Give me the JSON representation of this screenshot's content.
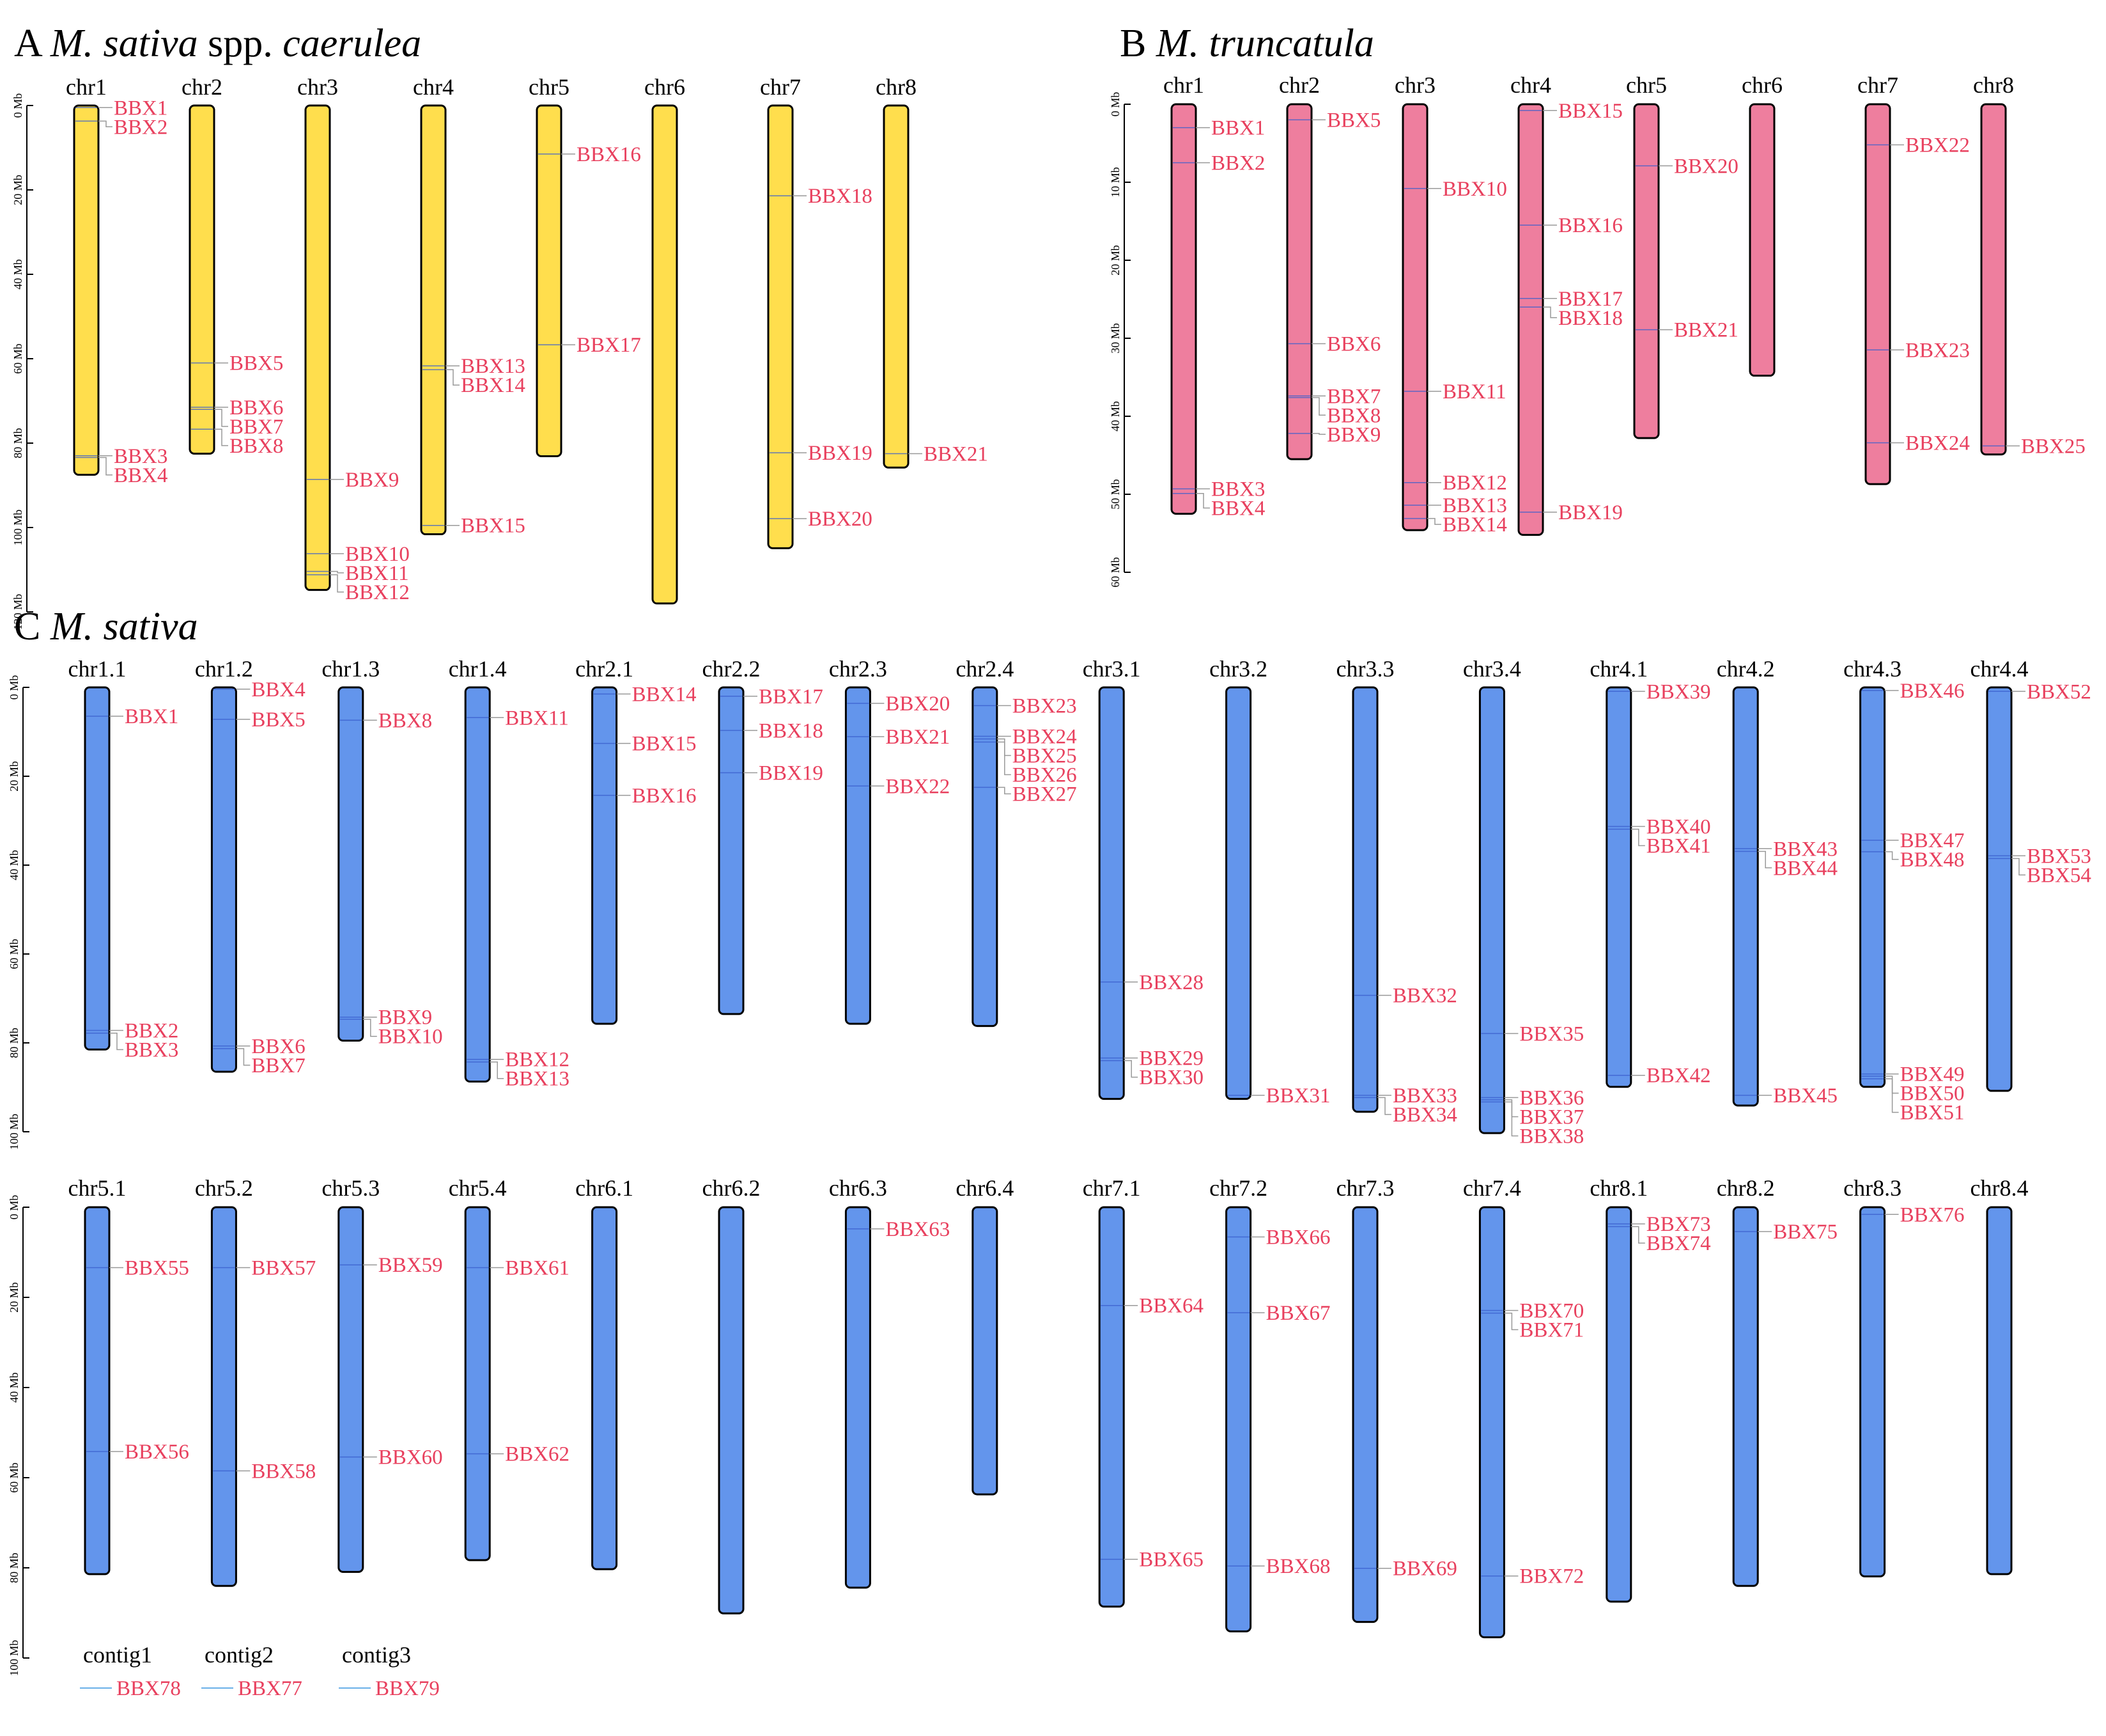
{
  "colors": {
    "A": "#FFDE4D",
    "B": "#EE7E9E",
    "C": "#6395EC",
    "gene_label": "#E8405E",
    "outline": "#000000"
  },
  "panels": [
    {
      "id": "A",
      "letter": "A",
      "species": "M. sativa",
      "species_suffix": " spp. ",
      "species_tail": "caerulea",
      "color_key": "A",
      "axis": {
        "ticks": [
          0,
          20,
          40,
          60,
          80,
          100,
          120
        ],
        "unit": "Mb"
      },
      "chromosomes": [
        {
          "name": "chr1",
          "length": 87.5,
          "genes": [
            {
              "name": "BBX1",
              "pos": 0.5
            },
            {
              "name": "BBX2",
              "pos": 3.7
            },
            {
              "name": "BBX3",
              "pos": 83.0
            },
            {
              "name": "BBX4",
              "pos": 83.4
            }
          ]
        },
        {
          "name": "chr2",
          "length": 82.5,
          "genes": [
            {
              "name": "BBX5",
              "pos": 61.0
            },
            {
              "name": "BBX6",
              "pos": 71.5
            },
            {
              "name": "BBX7",
              "pos": 72.0
            },
            {
              "name": "BBX8",
              "pos": 76.7
            }
          ]
        },
        {
          "name": "chr3",
          "length": 114.8,
          "genes": [
            {
              "name": "BBX9",
              "pos": 88.6
            },
            {
              "name": "BBX10",
              "pos": 106.2
            },
            {
              "name": "BBX11",
              "pos": 110.4
            },
            {
              "name": "BBX12",
              "pos": 111.2
            }
          ]
        },
        {
          "name": "chr4",
          "length": 101.6,
          "genes": [
            {
              "name": "BBX13",
              "pos": 61.7
            },
            {
              "name": "BBX14",
              "pos": 62.6
            },
            {
              "name": "BBX15",
              "pos": 99.5
            }
          ]
        },
        {
          "name": "chr5",
          "length": 83.1,
          "genes": [
            {
              "name": "BBX16",
              "pos": 11.5
            },
            {
              "name": "BBX17",
              "pos": 56.7
            }
          ]
        },
        {
          "name": "chr6",
          "length": 118.0,
          "genes": []
        },
        {
          "name": "chr7",
          "length": 104.9,
          "genes": [
            {
              "name": "BBX18",
              "pos": 21.4
            },
            {
              "name": "BBX19",
              "pos": 82.3
            },
            {
              "name": "BBX20",
              "pos": 97.9
            }
          ]
        },
        {
          "name": "chr8",
          "length": 85.8,
          "genes": [
            {
              "name": "BBX21",
              "pos": 82.5
            }
          ]
        }
      ]
    },
    {
      "id": "B",
      "letter": "B",
      "species": "M. truncatula",
      "species_suffix": "",
      "species_tail": "",
      "color_key": "B",
      "axis": {
        "ticks": [
          0,
          10,
          20,
          30,
          40,
          50,
          60
        ],
        "unit": "Mb"
      },
      "chromosomes": [
        {
          "name": "chr1",
          "length": 52.5,
          "genes": [
            {
              "name": "BBX1",
              "pos": 3.0
            },
            {
              "name": "BBX2",
              "pos": 7.5
            },
            {
              "name": "BBX3",
              "pos": 49.3
            },
            {
              "name": "BBX4",
              "pos": 49.9
            }
          ]
        },
        {
          "name": "chr2",
          "length": 45.5,
          "genes": [
            {
              "name": "BBX5",
              "pos": 2.0
            },
            {
              "name": "BBX6",
              "pos": 30.7
            },
            {
              "name": "BBX7",
              "pos": 37.4
            },
            {
              "name": "BBX8",
              "pos": 37.6
            },
            {
              "name": "BBX9",
              "pos": 42.2
            }
          ]
        },
        {
          "name": "chr3",
          "length": 54.6,
          "genes": [
            {
              "name": "BBX10",
              "pos": 10.8
            },
            {
              "name": "BBX11",
              "pos": 36.8
            },
            {
              "name": "BBX12",
              "pos": 48.5
            },
            {
              "name": "BBX13",
              "pos": 51.4
            },
            {
              "name": "BBX14",
              "pos": 53.1
            }
          ]
        },
        {
          "name": "chr4",
          "length": 55.2,
          "genes": [
            {
              "name": "BBX15",
              "pos": 0.8
            },
            {
              "name": "BBX16",
              "pos": 15.5
            },
            {
              "name": "BBX17",
              "pos": 24.9
            },
            {
              "name": "BBX18",
              "pos": 26.0
            },
            {
              "name": "BBX19",
              "pos": 52.3
            }
          ]
        },
        {
          "name": "chr5",
          "length": 42.8,
          "genes": [
            {
              "name": "BBX20",
              "pos": 7.9
            },
            {
              "name": "BBX21",
              "pos": 28.9
            }
          ]
        },
        {
          "name": "chr6",
          "length": 34.8,
          "genes": []
        },
        {
          "name": "chr7",
          "length": 48.7,
          "genes": [
            {
              "name": "BBX22",
              "pos": 5.2
            },
            {
              "name": "BBX23",
              "pos": 31.5
            },
            {
              "name": "BBX24",
              "pos": 43.4
            }
          ]
        },
        {
          "name": "chr8",
          "length": 44.9,
          "genes": [
            {
              "name": "BBX25",
              "pos": 43.8
            }
          ]
        }
      ]
    },
    {
      "id": "C1",
      "letter": "C",
      "species": "M. sativa",
      "species_suffix": "",
      "species_tail": "",
      "color_key": "C",
      "axis": {
        "ticks": [
          0,
          20,
          40,
          60,
          80,
          100
        ],
        "unit": "Mb"
      },
      "chromosomes": [
        {
          "name": "chr1.1",
          "length": 81.5,
          "genes": [
            {
              "name": "BBX1",
              "pos": 6.5
            },
            {
              "name": "BBX2",
              "pos": 77.2
            },
            {
              "name": "BBX3",
              "pos": 77.8
            }
          ]
        },
        {
          "name": "chr1.2",
          "length": 86.5,
          "genes": [
            {
              "name": "BBX4",
              "pos": 0.4
            },
            {
              "name": "BBX5",
              "pos": 7.2
            },
            {
              "name": "BBX6",
              "pos": 80.7
            },
            {
              "name": "BBX7",
              "pos": 81.3
            }
          ]
        },
        {
          "name": "chr1.3",
          "length": 79.5,
          "genes": [
            {
              "name": "BBX8",
              "pos": 7.4
            },
            {
              "name": "BBX9",
              "pos": 74.2
            },
            {
              "name": "BBX10",
              "pos": 74.7
            }
          ]
        },
        {
          "name": "chr1.4",
          "length": 88.7,
          "genes": [
            {
              "name": "BBX11",
              "pos": 6.8
            },
            {
              "name": "BBX12",
              "pos": 83.7
            },
            {
              "name": "BBX13",
              "pos": 84.3
            }
          ]
        },
        {
          "name": "chr2.1",
          "length": 75.7,
          "genes": [
            {
              "name": "BBX14",
              "pos": 1.5
            },
            {
              "name": "BBX15",
              "pos": 12.6
            },
            {
              "name": "BBX16",
              "pos": 24.3
            }
          ]
        },
        {
          "name": "chr2.2",
          "length": 73.5,
          "genes": [
            {
              "name": "BBX17",
              "pos": 2.0
            },
            {
              "name": "BBX18",
              "pos": 9.7
            },
            {
              "name": "BBX19",
              "pos": 19.2
            }
          ]
        },
        {
          "name": "chr2.3",
          "length": 75.7,
          "genes": [
            {
              "name": "BBX20",
              "pos": 3.6
            },
            {
              "name": "BBX21",
              "pos": 11.1
            },
            {
              "name": "BBX22",
              "pos": 22.2
            }
          ]
        },
        {
          "name": "chr2.4",
          "length": 76.2,
          "genes": [
            {
              "name": "BBX23",
              "pos": 4.1
            },
            {
              "name": "BBX24",
              "pos": 11.0
            },
            {
              "name": "BBX25",
              "pos": 11.6
            },
            {
              "name": "BBX26",
              "pos": 12.3
            },
            {
              "name": "BBX27",
              "pos": 22.5
            }
          ]
        },
        {
          "name": "chr3.1",
          "length": 92.6,
          "genes": [
            {
              "name": "BBX28",
              "pos": 66.3
            },
            {
              "name": "BBX29",
              "pos": 83.4
            },
            {
              "name": "BBX30",
              "pos": 84.0
            }
          ]
        },
        {
          "name": "chr3.2",
          "length": 92.6,
          "genes": [
            {
              "name": "BBX31",
              "pos": 91.8
            }
          ]
        },
        {
          "name": "chr3.3",
          "length": 95.5,
          "genes": [
            {
              "name": "BBX32",
              "pos": 69.3
            },
            {
              "name": "BBX33",
              "pos": 91.8
            },
            {
              "name": "BBX34",
              "pos": 92.3
            }
          ]
        },
        {
          "name": "chr3.4",
          "length": 100.3,
          "genes": [
            {
              "name": "BBX35",
              "pos": 77.9
            },
            {
              "name": "BBX36",
              "pos": 92.3
            },
            {
              "name": "BBX37",
              "pos": 92.8
            },
            {
              "name": "BBX38",
              "pos": 93.3
            }
          ]
        },
        {
          "name": "chr4.1",
          "length": 89.9,
          "genes": [
            {
              "name": "BBX39",
              "pos": 0.9
            },
            {
              "name": "BBX40",
              "pos": 31.3
            },
            {
              "name": "BBX41",
              "pos": 31.9
            },
            {
              "name": "BBX42",
              "pos": 87.3
            }
          ]
        },
        {
          "name": "chr4.2",
          "length": 94.1,
          "genes": [
            {
              "name": "BBX43",
              "pos": 36.3
            },
            {
              "name": "BBX44",
              "pos": 36.9
            },
            {
              "name": "BBX45",
              "pos": 91.8
            }
          ]
        },
        {
          "name": "chr4.3",
          "length": 89.9,
          "genes": [
            {
              "name": "BBX46",
              "pos": 0.7
            },
            {
              "name": "BBX47",
              "pos": 34.4
            },
            {
              "name": "BBX48",
              "pos": 37.0
            },
            {
              "name": "BBX49",
              "pos": 87.0
            },
            {
              "name": "BBX50",
              "pos": 87.5
            },
            {
              "name": "BBX51",
              "pos": 88.1
            }
          ]
        },
        {
          "name": "chr4.4",
          "length": 90.8,
          "genes": [
            {
              "name": "BBX52",
              "pos": 0.9
            },
            {
              "name": "BBX53",
              "pos": 37.9
            },
            {
              "name": "BBX54",
              "pos": 38.5
            }
          ]
        }
      ]
    },
    {
      "id": "C2",
      "letter": "",
      "species": "",
      "species_suffix": "",
      "species_tail": "",
      "color_key": "C",
      "axis": {
        "ticks": [
          0,
          20,
          40,
          60,
          80,
          100
        ],
        "unit": "Mb"
      },
      "chromosomes": [
        {
          "name": "chr5.1",
          "length": 81.4,
          "genes": [
            {
              "name": "BBX55",
              "pos": 13.4
            },
            {
              "name": "BBX56",
              "pos": 54.2
            }
          ]
        },
        {
          "name": "chr5.2",
          "length": 84.0,
          "genes": [
            {
              "name": "BBX57",
              "pos": 13.4
            },
            {
              "name": "BBX58",
              "pos": 58.5
            }
          ]
        },
        {
          "name": "chr5.3",
          "length": 80.9,
          "genes": [
            {
              "name": "BBX59",
              "pos": 12.8
            },
            {
              "name": "BBX60",
              "pos": 55.4
            }
          ]
        },
        {
          "name": "chr5.4",
          "length": 78.3,
          "genes": [
            {
              "name": "BBX61",
              "pos": 13.4
            },
            {
              "name": "BBX62",
              "pos": 54.7
            }
          ]
        },
        {
          "name": "chr6.1",
          "length": 80.3,
          "genes": []
        },
        {
          "name": "chr6.2",
          "length": 90.1,
          "genes": []
        },
        {
          "name": "chr6.3",
          "length": 84.4,
          "genes": [
            {
              "name": "BBX63",
              "pos": 4.8
            }
          ]
        },
        {
          "name": "chr6.4",
          "length": 63.7,
          "genes": []
        },
        {
          "name": "chr7.1",
          "length": 88.6,
          "genes": [
            {
              "name": "BBX64",
              "pos": 21.8
            },
            {
              "name": "BBX65",
              "pos": 78.1
            }
          ]
        },
        {
          "name": "chr7.2",
          "length": 94.1,
          "genes": [
            {
              "name": "BBX66",
              "pos": 6.6
            },
            {
              "name": "BBX67",
              "pos": 23.4
            },
            {
              "name": "BBX68",
              "pos": 79.6
            }
          ]
        },
        {
          "name": "chr7.3",
          "length": 92.0,
          "genes": [
            {
              "name": "BBX69",
              "pos": 80.1
            }
          ]
        },
        {
          "name": "chr7.4",
          "length": 95.4,
          "genes": [
            {
              "name": "BBX70",
              "pos": 22.9
            },
            {
              "name": "BBX71",
              "pos": 23.5
            },
            {
              "name": "BBX72",
              "pos": 81.8
            }
          ]
        },
        {
          "name": "chr8.1",
          "length": 87.5,
          "genes": [
            {
              "name": "BBX73",
              "pos": 3.7
            },
            {
              "name": "BBX74",
              "pos": 4.3
            }
          ]
        },
        {
          "name": "chr8.2",
          "length": 84.0,
          "genes": [
            {
              "name": "BBX75",
              "pos": 5.4
            }
          ]
        },
        {
          "name": "chr8.3",
          "length": 81.9,
          "genes": [
            {
              "name": "BBX76",
              "pos": 1.6
            }
          ]
        },
        {
          "name": "chr8.4",
          "length": 81.4,
          "genes": []
        }
      ],
      "contigs": [
        {
          "name": "contig1",
          "gene": "BBX78"
        },
        {
          "name": "contig2",
          "gene": "BBX77"
        },
        {
          "name": "contig3",
          "gene": "BBX79"
        }
      ]
    }
  ]
}
